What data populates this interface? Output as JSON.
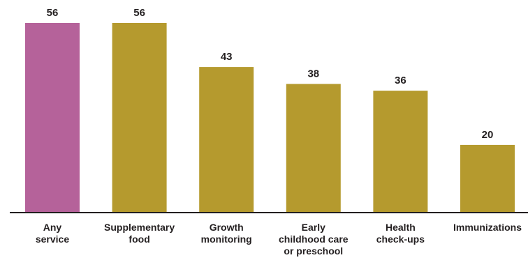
{
  "chart_data": {
    "type": "bar",
    "title": "",
    "xlabel": "",
    "ylabel": "",
    "ylim": [
      0,
      56
    ],
    "grid": false,
    "legend": "none",
    "categories": [
      "Any service",
      "Supplementary food",
      "Growth monitoring",
      "Early childhood care or preschool",
      "Health check-ups",
      "Immunizations"
    ],
    "category_label_lines": [
      [
        "Any",
        "service"
      ],
      [
        "Supplementary",
        "food"
      ],
      [
        "Growth",
        "monitoring"
      ],
      [
        "Early",
        "childhood care",
        "or preschool"
      ],
      [
        "Health",
        "check-ups"
      ],
      [
        "Immunizations"
      ]
    ],
    "values": [
      56,
      56,
      43,
      38,
      36,
      20
    ],
    "data_labels": [
      "56",
      "56",
      "43",
      "38",
      "36",
      "20"
    ],
    "bar_colors": [
      "#b5629a",
      "#b59a2e",
      "#b59a2e",
      "#b59a2e",
      "#b59a2e",
      "#b59a2e"
    ]
  }
}
